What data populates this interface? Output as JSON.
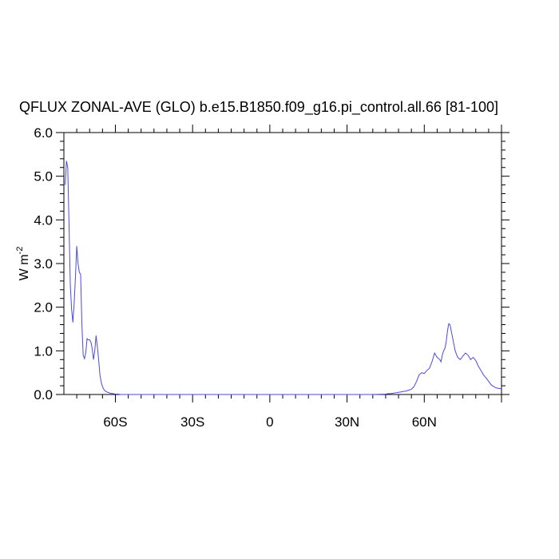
{
  "chart_data": {
    "type": "line",
    "title": "QFLUX ZONAL-AVE (GLO) b.e15.B1850.f09_g16.pi_control.all.66 [81-100]",
    "ylabel": {
      "base": "W m",
      "sup": "-2"
    },
    "xlabel": "",
    "xlim": [
      -80,
      90
    ],
    "ylim": [
      0,
      6
    ],
    "x_ticks": [
      {
        "value": -60,
        "label": "60S"
      },
      {
        "value": -30,
        "label": "30S"
      },
      {
        "value": 0,
        "label": "0"
      },
      {
        "value": 30,
        "label": "30N"
      },
      {
        "value": 60,
        "label": "60N"
      }
    ],
    "y_ticks": [
      {
        "value": 0,
        "label": "0.0"
      },
      {
        "value": 1,
        "label": "1.0"
      },
      {
        "value": 2,
        "label": "2.0"
      },
      {
        "value": 3,
        "label": "3.0"
      },
      {
        "value": 4,
        "label": "4.0"
      },
      {
        "value": 5,
        "label": "5.0"
      },
      {
        "value": 6,
        "label": "6.0"
      }
    ],
    "grid": false,
    "line_color": "#4a4adf",
    "series": [
      {
        "x": [
          -79.5,
          -79,
          -78.5,
          -78,
          -77.5,
          -77,
          -76.5,
          -76,
          -75.5,
          -75,
          -74.5,
          -74,
          -73.5,
          -73,
          -72.5,
          -72,
          -71.5,
          -71,
          -70.5,
          -70,
          -69.5,
          -69,
          -68.5,
          -68,
          -67.5,
          -67,
          -66.5,
          -66,
          -65.5,
          -65,
          -64.5,
          -64,
          -63,
          -62,
          -61,
          -60,
          -59,
          -58,
          -57,
          -56,
          -55,
          -50,
          -40,
          -30,
          -20,
          -10,
          0,
          10,
          20,
          30,
          40,
          45,
          46,
          47,
          48,
          49,
          50,
          51,
          52,
          53,
          54,
          55,
          56,
          57,
          58,
          59,
          60,
          61,
          62,
          63,
          64,
          65,
          66,
          66.5,
          67,
          67.5,
          68,
          68.5,
          69,
          69.5,
          70,
          71,
          72,
          73,
          74,
          75,
          76,
          77,
          78,
          79,
          80,
          81,
          82,
          83,
          84,
          85,
          86,
          87,
          88,
          89,
          90
        ],
        "y": [
          4.8,
          5.35,
          5.2,
          3.9,
          2.5,
          1.95,
          1.65,
          2.1,
          2.7,
          3.4,
          3.0,
          2.8,
          2.75,
          1.6,
          0.9,
          0.82,
          0.95,
          1.28,
          1.25,
          1.25,
          1.2,
          1.05,
          0.8,
          1.0,
          1.35,
          1.1,
          0.8,
          0.45,
          0.28,
          0.18,
          0.12,
          0.08,
          0.05,
          0.03,
          0.02,
          0.01,
          0.01,
          0.0,
          0.0,
          0.0,
          0.0,
          0.0,
          0.0,
          0.0,
          0.0,
          0.0,
          0.0,
          0.0,
          0.0,
          0.0,
          0.0,
          0.01,
          0.02,
          0.02,
          0.03,
          0.04,
          0.05,
          0.06,
          0.07,
          0.08,
          0.1,
          0.12,
          0.18,
          0.3,
          0.45,
          0.5,
          0.48,
          0.55,
          0.6,
          0.75,
          0.95,
          0.85,
          0.8,
          0.75,
          0.9,
          1.0,
          1.05,
          1.2,
          1.45,
          1.62,
          1.6,
          1.3,
          1.0,
          0.85,
          0.8,
          0.88,
          0.95,
          0.9,
          0.8,
          0.85,
          0.78,
          0.65,
          0.55,
          0.45,
          0.38,
          0.3,
          0.22,
          0.18,
          0.15,
          0.14,
          0.13
        ]
      }
    ]
  }
}
